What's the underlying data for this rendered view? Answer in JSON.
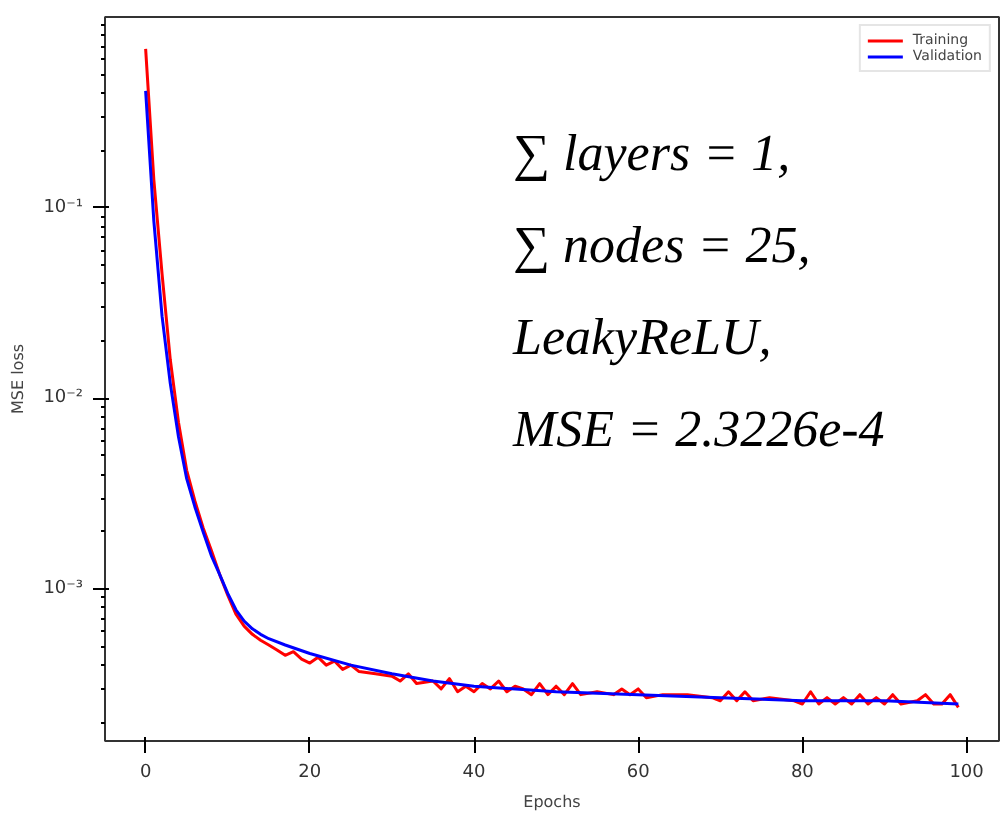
{
  "chart_data": {
    "type": "line",
    "xlabel": "Epochs",
    "ylabel": "MSE loss",
    "annotations": [
      "∑ layers = 1,",
      "∑ nodes = 25,",
      "LeakyReLU,",
      "MSE = 2.3226e-4"
    ],
    "log": "y",
    "grid": false,
    "legend": "top right",
    "line_style": "solid",
    "marker": "none",
    "xlim": [
      -4.95,
      103.95
    ],
    "ylim": [
      0.00016,
      1.0
    ],
    "xticks": [
      0,
      20,
      40,
      60,
      80,
      100
    ],
    "yticks": [
      {
        "value": 0.001,
        "label": "10⁻³"
      },
      {
        "value": 0.01,
        "label": "10⁻²"
      },
      {
        "value": 0.1,
        "label": "10⁻¹"
      }
    ],
    "series": [
      {
        "name": "Training",
        "color": "#ff0000",
        "x": [
          0,
          1,
          2,
          3,
          4,
          5,
          6,
          7,
          8,
          9,
          10,
          11,
          12,
          13,
          14,
          15,
          16,
          17,
          18,
          19,
          20,
          21,
          22,
          23,
          24,
          25,
          26,
          28,
          30,
          31,
          32,
          33,
          35,
          36,
          37,
          38,
          39,
          40,
          41,
          42,
          43,
          44,
          45,
          46,
          47,
          48,
          49,
          50,
          51,
          52,
          53,
          55,
          57,
          58,
          59,
          60,
          61,
          63,
          66,
          69,
          70,
          71,
          72,
          73,
          74,
          76,
          79,
          80,
          81,
          82,
          83,
          84,
          85,
          86,
          87,
          88,
          89,
          90,
          91,
          92,
          94,
          95,
          96,
          97,
          98,
          99
        ],
        "values": [
          0.68,
          0.14,
          0.045,
          0.016,
          0.0075,
          0.0042,
          0.0029,
          0.0021,
          0.0016,
          0.0012,
          0.00093,
          0.00074,
          0.00064,
          0.00058,
          0.00054,
          0.00051,
          0.00048,
          0.00045,
          0.00047,
          0.00043,
          0.00041,
          0.00044,
          0.0004,
          0.00042,
          0.00038,
          0.0004,
          0.00037,
          0.00036,
          0.00035,
          0.00033,
          0.00036,
          0.00032,
          0.00033,
          0.0003,
          0.00034,
          0.00029,
          0.00031,
          0.00029,
          0.00032,
          0.0003,
          0.00033,
          0.00029,
          0.00031,
          0.0003,
          0.00028,
          0.00032,
          0.00028,
          0.00031,
          0.00028,
          0.00032,
          0.00028,
          0.00029,
          0.00028,
          0.0003,
          0.00028,
          0.0003,
          0.00027,
          0.00028,
          0.00028,
          0.00027,
          0.00026,
          0.00029,
          0.00026,
          0.00029,
          0.00026,
          0.00027,
          0.00026,
          0.00025,
          0.00029,
          0.00025,
          0.00027,
          0.00025,
          0.00027,
          0.00025,
          0.00028,
          0.00025,
          0.00027,
          0.00025,
          0.00028,
          0.00025,
          0.00026,
          0.00028,
          0.00025,
          0.00025,
          0.00028,
          0.00024
        ]
      },
      {
        "name": "Validation",
        "color": "#0000ff",
        "x": [
          0,
          1,
          2,
          3,
          4,
          5,
          6,
          7,
          8,
          9,
          10,
          11,
          12,
          13,
          14,
          15,
          17,
          20,
          25,
          30,
          35,
          40,
          50,
          60,
          70,
          80,
          90,
          99
        ],
        "values": [
          0.41,
          0.085,
          0.027,
          0.012,
          0.0063,
          0.0038,
          0.0027,
          0.002,
          0.0015,
          0.0012,
          0.00095,
          0.00078,
          0.00068,
          0.00062,
          0.00058,
          0.00055,
          0.00051,
          0.00046,
          0.0004,
          0.00036,
          0.00033,
          0.00031,
          0.00029,
          0.00028,
          0.00027,
          0.00026,
          0.00026,
          0.00025
        ]
      }
    ]
  }
}
